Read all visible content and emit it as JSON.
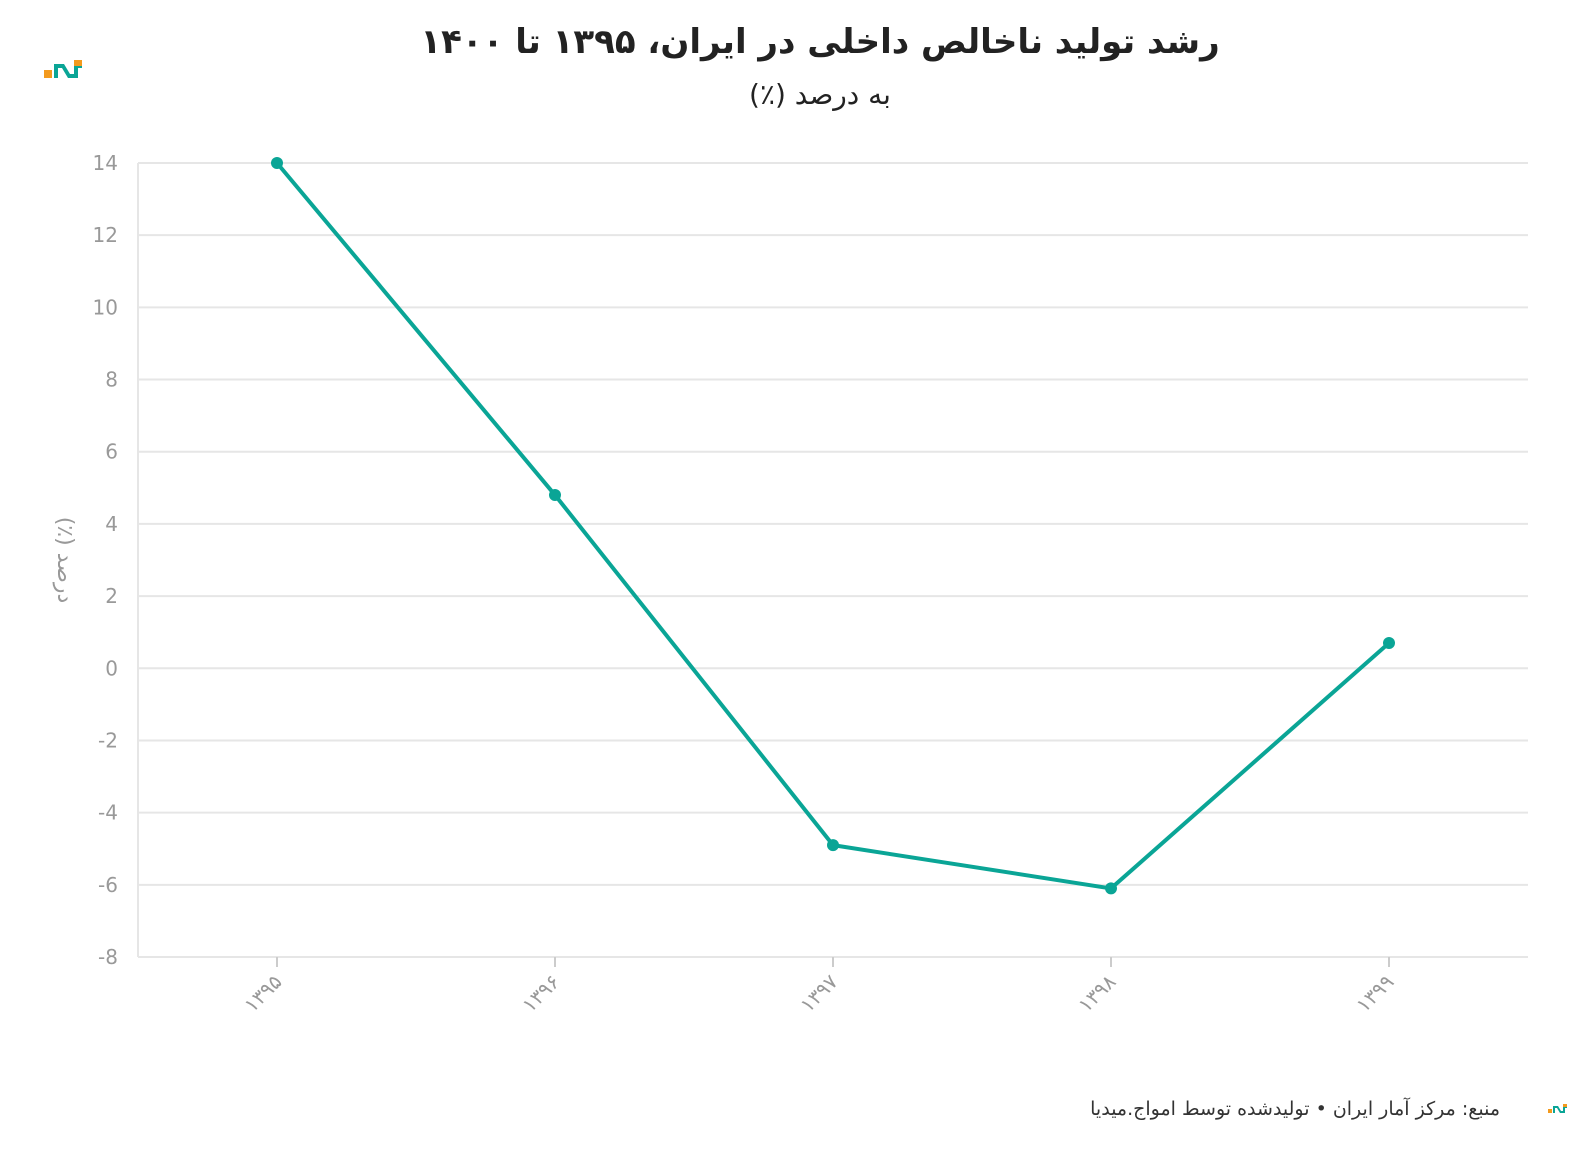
{
  "colors": {
    "line": "#0aa596",
    "grid": "#e6e6e6",
    "axis_text": "#999999",
    "logo_orange": "#f39a1e",
    "logo_teal": "#0aa596"
  },
  "logo": {
    "icon": "brand-logo-icon"
  },
  "footer": {
    "text": "منبع: مرکز آمار ایران • تولیدشده توسط امواج.میدیا",
    "icon": "brand-logo-small-icon"
  },
  "chart_data": {
    "type": "line",
    "title": "رشد تولید ناخالص داخلی در ایران، ۱۳۹۵ تا ۱۴۰۰",
    "subtitle": "به درصد (٪)",
    "ylabel": "درصد (٪)",
    "xlabel": "",
    "categories": [
      "۱۳۹۵",
      "۱۳۹۶",
      "۱۳۹۷",
      "۱۳۹۸",
      "۱۳۹۹"
    ],
    "series": [
      {
        "values": [
          14,
          4.8,
          -4.9,
          -6.1,
          0.7
        ]
      }
    ],
    "ylim": [
      -8,
      14
    ],
    "yticks": [
      "14",
      "12",
      "10",
      "8",
      "6",
      "4",
      "2",
      "0",
      "-2",
      "-4",
      "-6",
      "-8"
    ],
    "grid": true,
    "legend": "none"
  }
}
